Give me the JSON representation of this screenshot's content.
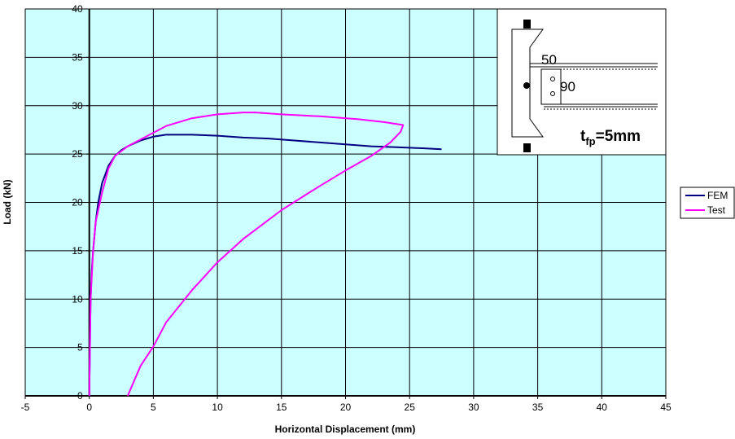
{
  "chart_data": {
    "type": "line",
    "xlabel": "Horizontal Displacement (mm)",
    "ylabel": "Load (kN)",
    "xlim": [
      -5,
      45
    ],
    "ylim": [
      0,
      40
    ],
    "xticks": [
      "-5",
      "0",
      "5",
      "10",
      "15",
      "20",
      "25",
      "30",
      "35",
      "40",
      "45"
    ],
    "yticks": [
      "0",
      "5",
      "10",
      "15",
      "20",
      "25",
      "30",
      "35",
      "40"
    ],
    "grid": true,
    "plot_background": "#ccffff",
    "legend_position": "right",
    "series": [
      {
        "name": "FEM",
        "color": "#000080",
        "x": [
          0,
          0.05,
          0.1,
          0.2,
          0.3,
          0.5,
          0.7,
          1.0,
          1.5,
          2.0,
          2.5,
          3.0,
          4.0,
          5.0,
          6.0,
          7.0,
          8.0,
          10.0,
          12.0,
          14.0,
          16.0,
          18.0,
          20.0,
          22.0,
          24.0,
          26.0,
          27.5
        ],
        "y": [
          0,
          5,
          10,
          13,
          15,
          18,
          20,
          22,
          23.8,
          24.8,
          25.4,
          25.8,
          26.4,
          26.8,
          27.0,
          27.0,
          27.0,
          26.9,
          26.7,
          26.6,
          26.4,
          26.2,
          26.0,
          25.8,
          25.7,
          25.6,
          25.5
        ]
      },
      {
        "name": "Test",
        "color": "#ff00ff",
        "x": [
          0,
          0.05,
          0.1,
          0.3,
          0.5,
          1.0,
          1.5,
          2.0,
          3.0,
          4.0,
          5.0,
          6.0,
          8.0,
          10.0,
          12.0,
          13.0,
          15.0,
          18.0,
          21.0,
          23.0,
          24.5,
          24.3,
          23.5,
          22.0,
          20.0,
          18.0,
          15.0,
          12.0,
          10.0,
          8.0,
          6.0,
          5.0,
          4.0,
          3.0
        ],
        "y": [
          0,
          5,
          10,
          15,
          18,
          21,
          23.5,
          24.8,
          25.8,
          26.5,
          27.2,
          27.9,
          28.7,
          29.1,
          29.3,
          29.3,
          29.1,
          28.9,
          28.6,
          28.3,
          28.0,
          27.3,
          26.2,
          24.8,
          23.3,
          21.7,
          19.2,
          16.2,
          13.8,
          10.9,
          7.6,
          5.1,
          3.1,
          0
        ]
      }
    ]
  },
  "inset": {
    "dim_top": "50",
    "dim_side": "90",
    "label_main": "t",
    "label_sub": "fp",
    "label_value": "=5mm"
  }
}
